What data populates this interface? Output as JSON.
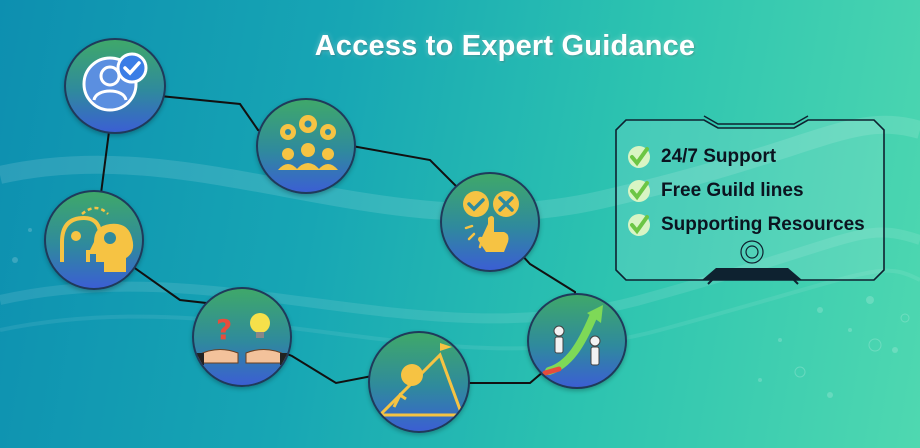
{
  "title": "Access to Expert Guidance",
  "features": [
    {
      "label": "24/7 Support",
      "icon": "check-icon"
    },
    {
      "label": "Free Guild lines",
      "icon": "check-icon"
    },
    {
      "label": "Supporting Resources",
      "icon": "check-icon"
    }
  ],
  "nodes": [
    {
      "icon": "user-verified-icon"
    },
    {
      "icon": "team-gears-icon"
    },
    {
      "icon": "approve-reject-touch-icon"
    },
    {
      "icon": "growth-arrow-climb-icon"
    },
    {
      "icon": "mountain-summit-icon"
    },
    {
      "icon": "idea-exchange-hands-icon"
    },
    {
      "icon": "mind-connection-icon"
    }
  ],
  "colors": {
    "background_start": "#0d8fb0",
    "background_end": "#4fd8b0",
    "node_top": "#3fa86a",
    "node_bottom": "#3b5fd3",
    "icon_accent": "#f6c343",
    "check_green": "#7ed957",
    "panel_frame": "#0e2230"
  }
}
